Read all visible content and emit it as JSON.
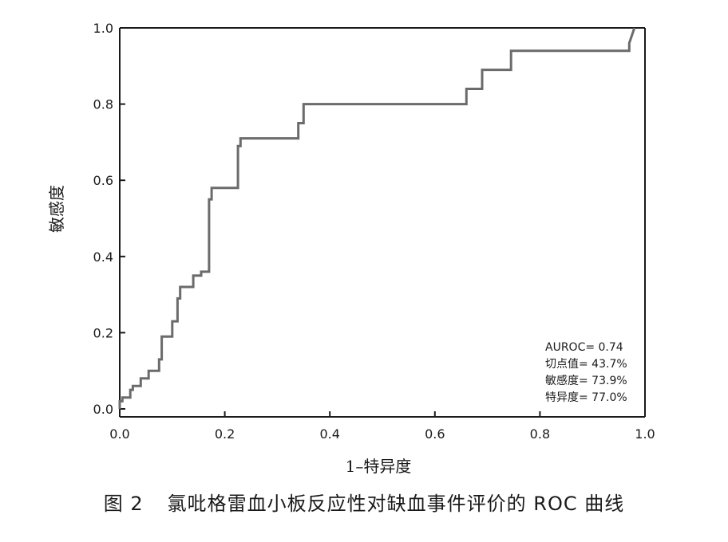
{
  "chart_data": {
    "type": "line",
    "title": "",
    "xlabel": "1–特异度",
    "ylabel": "敏感度",
    "xlim": [
      0.0,
      1.0
    ],
    "ylim": [
      0.0,
      1.0
    ],
    "x_ticks": [
      "0.0",
      "0.2",
      "0.4",
      "0.6",
      "0.8",
      "1.0"
    ],
    "y_ticks": [
      "0.0",
      "0.2",
      "0.4",
      "0.6",
      "0.8",
      "1.0"
    ],
    "grid": false,
    "line_color": "#6b6b6b",
    "series": [
      {
        "x": [
          0.0,
          0.0,
          0.005,
          0.005,
          0.02,
          0.02,
          0.025,
          0.025,
          0.04,
          0.04,
          0.055,
          0.055,
          0.075,
          0.075,
          0.08,
          0.08,
          0.1,
          0.1,
          0.11,
          0.11,
          0.115,
          0.115,
          0.14,
          0.14,
          0.155,
          0.155,
          0.17,
          0.17,
          0.175,
          0.175,
          0.225,
          0.225,
          0.23,
          0.23,
          0.34,
          0.34,
          0.35,
          0.35,
          0.66,
          0.66,
          0.69,
          0.69,
          0.745,
          0.745,
          0.97,
          0.97,
          0.98
        ],
        "y": [
          0.0,
          0.02,
          0.02,
          0.03,
          0.03,
          0.05,
          0.05,
          0.06,
          0.06,
          0.08,
          0.08,
          0.1,
          0.1,
          0.13,
          0.13,
          0.19,
          0.19,
          0.23,
          0.23,
          0.29,
          0.29,
          0.32,
          0.32,
          0.35,
          0.35,
          0.36,
          0.36,
          0.55,
          0.55,
          0.58,
          0.58,
          0.69,
          0.69,
          0.71,
          0.71,
          0.75,
          0.75,
          0.8,
          0.8,
          0.84,
          0.84,
          0.89,
          0.89,
          0.94,
          0.94,
          0.96,
          1.0
        ]
      }
    ],
    "annotations": [
      "AUROC= 0.74",
      "切点值= 43.7%",
      "敏感度= 73.9%",
      "特异度= 77.0%"
    ],
    "annotation_position": "bottom-right"
  },
  "caption": {
    "figure_number": "图 2",
    "text": "氯吡格雷血小板反应性对缺血事件评价的 ROC 曲线"
  }
}
